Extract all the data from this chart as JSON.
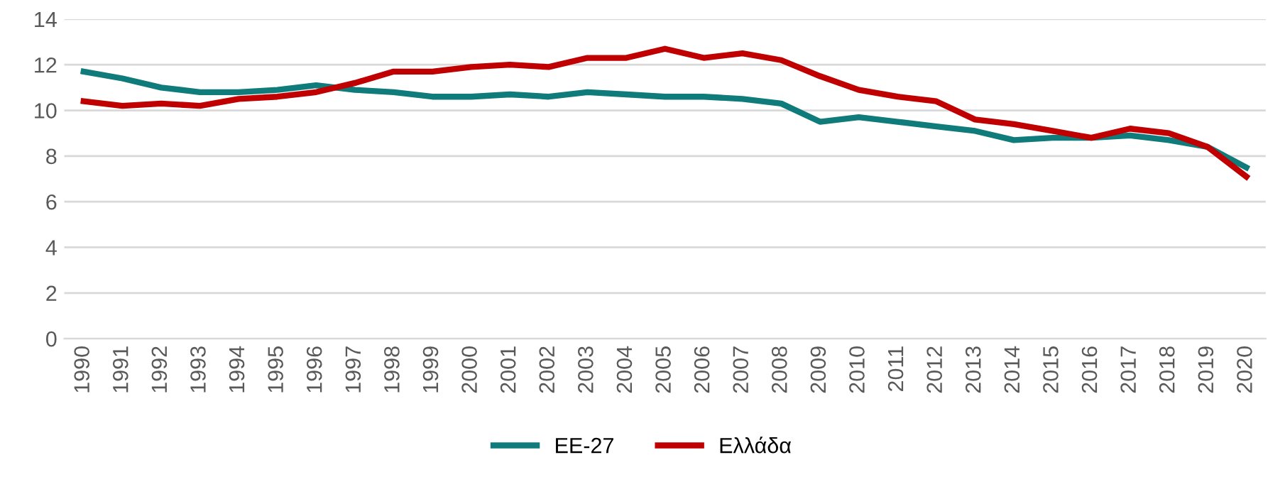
{
  "chart_data": {
    "type": "line",
    "categories": [
      "1990",
      "1991",
      "1992",
      "1993",
      "1994",
      "1995",
      "1996",
      "1997",
      "1998",
      "1999",
      "2000",
      "2001",
      "2002",
      "2003",
      "2004",
      "2005",
      "2006",
      "2007",
      "2008",
      "2009",
      "2010",
      "2011",
      "2012",
      "2013",
      "2014",
      "2015",
      "2016",
      "2017",
      "2018",
      "2019",
      "2020"
    ],
    "series": [
      {
        "name": "ΕΕ-27",
        "color": "#0f7b7b",
        "values": [
          11.7,
          11.4,
          11.0,
          10.8,
          10.8,
          10.9,
          11.1,
          10.9,
          10.8,
          10.6,
          10.6,
          10.7,
          10.6,
          10.8,
          10.7,
          10.6,
          10.6,
          10.5,
          10.3,
          9.5,
          9.7,
          9.5,
          9.3,
          9.1,
          8.7,
          8.8,
          8.8,
          8.9,
          8.7,
          8.4,
          7.5
        ]
      },
      {
        "name": "Ελλάδα",
        "color": "#c00000",
        "values": [
          10.4,
          10.2,
          10.3,
          10.2,
          10.5,
          10.6,
          10.8,
          11.2,
          11.7,
          11.7,
          11.9,
          12.0,
          11.9,
          12.3,
          12.3,
          12.7,
          12.3,
          12.5,
          12.2,
          11.5,
          10.9,
          10.6,
          10.4,
          9.6,
          9.4,
          9.1,
          8.8,
          9.2,
          9.0,
          8.4,
          7.1
        ]
      }
    ],
    "ylim": [
      0,
      14
    ],
    "yticks": [
      0,
      2,
      4,
      6,
      8,
      10,
      12,
      14
    ],
    "grid": "y",
    "legend": "bottom"
  }
}
